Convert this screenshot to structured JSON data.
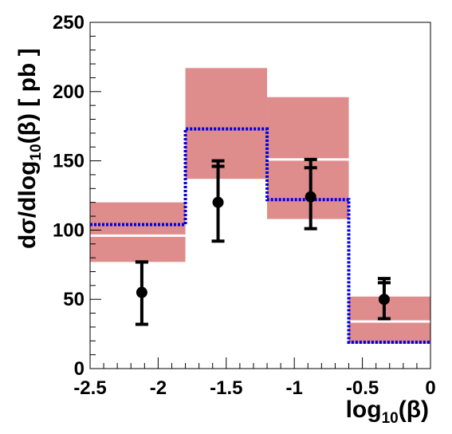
{
  "chart_data": {
    "type": "bar",
    "xlabel": {
      "prefix": "log",
      "sub": "10",
      "suffix": "(β)"
    },
    "ylabel": {
      "prefix": "dσ/dlog",
      "sub": "10",
      "suffix": "(β) [ pb ]"
    },
    "xlim": [
      -2.5,
      0
    ],
    "ylim": [
      0,
      250
    ],
    "x_ticks": [
      {
        "value": -2.5,
        "label": "-2.5"
      },
      {
        "value": -2.0,
        "label": "-2"
      },
      {
        "value": -1.5,
        "label": "-1.5"
      },
      {
        "value": -1.0,
        "label": "-1"
      },
      {
        "value": -0.5,
        "label": "-0.5"
      },
      {
        "value": 0.0,
        "label": "0"
      }
    ],
    "y_ticks": [
      {
        "value": 0,
        "label": "0"
      },
      {
        "value": 50,
        "label": "50"
      },
      {
        "value": 100,
        "label": "100"
      },
      {
        "value": 150,
        "label": "150"
      },
      {
        "value": 200,
        "label": "200"
      },
      {
        "value": 250,
        "label": "250"
      }
    ],
    "bins": [
      {
        "low": -2.5,
        "high": -1.8,
        "band_low": 77,
        "band_high": 120,
        "band_center": 96,
        "step_value": 104,
        "point_x": -2.12,
        "point_y": 55,
        "inner_err_high": 77,
        "err_low": 32,
        "err_high": 77
      },
      {
        "low": -1.8,
        "high": -1.2,
        "band_low": 137,
        "band_high": 217,
        "band_center": null,
        "step_value": 173,
        "point_x": -1.56,
        "point_y": 120,
        "inner_err_high": 146,
        "err_low": 92,
        "err_high": 150
      },
      {
        "low": -1.2,
        "high": -0.6,
        "band_low": 108,
        "band_high": 196,
        "band_center": 151,
        "step_value": 122,
        "point_x": -0.88,
        "point_y": 124,
        "inner_err_high": 145,
        "err_low": 101,
        "err_high": 151
      },
      {
        "low": -0.6,
        "high": 0.0,
        "band_low": 18,
        "band_high": 52,
        "band_center": 34,
        "step_value": 19,
        "point_x": -0.34,
        "point_y": 50,
        "inner_err_high": 62,
        "err_low": 36,
        "err_high": 65
      }
    ],
    "colors": {
      "band": "#de8c8c",
      "band_center": "#ffffff",
      "step_line": "#0000e6",
      "points": "#000000"
    }
  }
}
